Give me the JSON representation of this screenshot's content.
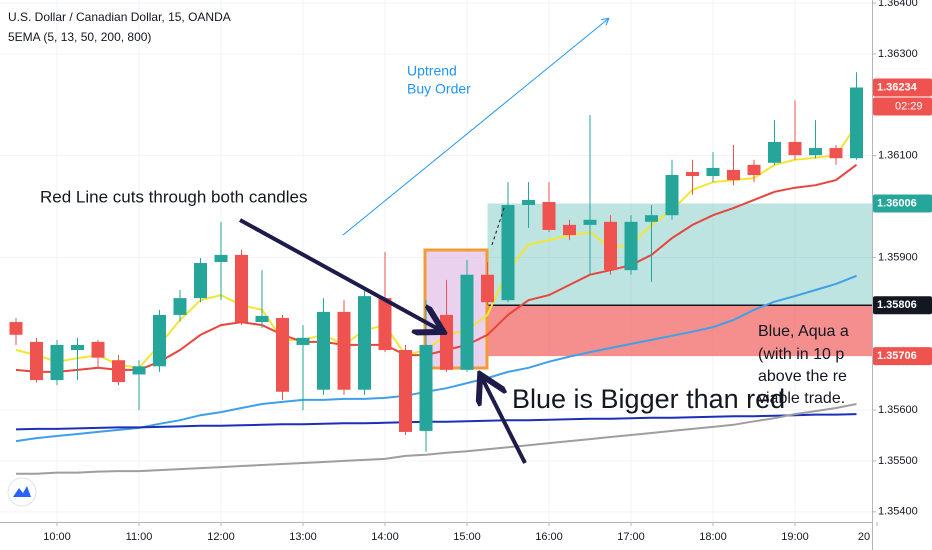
{
  "chart_data": {
    "type": "candlestick",
    "title": "U.S. Dollar / Canadian Dollar, 15, OANDA",
    "subtitle": "5EMA (5, 13, 50, 200, 800)",
    "x": [
      "09:30",
      "09:45",
      "10:00",
      "10:15",
      "10:30",
      "10:45",
      "11:00",
      "11:15",
      "11:30",
      "11:45",
      "12:00",
      "12:15",
      "12:30",
      "12:45",
      "13:00",
      "13:15",
      "13:30",
      "13:45",
      "14:00",
      "14:15",
      "14:30",
      "14:45",
      "15:00",
      "15:15",
      "15:30",
      "15:45",
      "16:00",
      "16:15",
      "16:30",
      "16:45",
      "17:00",
      "17:15",
      "17:30",
      "17:45",
      "18:00",
      "18:15",
      "18:30",
      "18:45",
      "19:00",
      "19:15",
      "19:30",
      "19:45"
    ],
    "open": [
      1.35773,
      1.35734,
      1.35659,
      1.35718,
      1.35734,
      1.35698,
      1.3567,
      1.35686,
      1.35787,
      1.3582,
      1.35891,
      1.35905,
      1.35773,
      1.35781,
      1.35728,
      1.3564,
      1.35793,
      1.3564,
      1.3582,
      1.35718,
      1.35559,
      1.35787,
      1.35679,
      1.35866,
      1.35816,
      1.36003,
      1.36009,
      1.35964,
      1.35964,
      1.3597,
      1.35875,
      1.3597,
      1.35983,
      1.36068,
      1.3606,
      1.36072,
      1.36082,
      1.36086,
      1.36127,
      1.36101,
      1.36115,
      1.36095
    ],
    "high": [
      1.35781,
      1.35742,
      1.35738,
      1.35742,
      1.35738,
      1.35708,
      1.35698,
      1.35797,
      1.35836,
      1.35899,
      1.3597,
      1.35915,
      1.35875,
      1.35787,
      1.35767,
      1.3582,
      1.35816,
      1.35836,
      1.35911,
      1.35728,
      1.35816,
      1.35856,
      1.35895,
      1.35891,
      1.36048,
      1.36048,
      1.36048,
      1.35974,
      1.3618,
      1.35983,
      1.35983,
      1.36003,
      1.36092,
      1.36092,
      1.36107,
      1.36121,
      1.36092,
      1.3617,
      1.36209,
      1.3617,
      1.36121,
      1.36264
    ],
    "low": [
      1.35728,
      1.35654,
      1.35649,
      1.35659,
      1.35683,
      1.35649,
      1.356,
      1.35675,
      1.35774,
      1.35812,
      1.35816,
      1.35767,
      1.35761,
      1.3562,
      1.356,
      1.3563,
      1.3563,
      1.3563,
      1.35714,
      1.35551,
      1.35518,
      1.35675,
      1.35675,
      1.35807,
      1.35812,
      1.35958,
      1.3595,
      1.35934,
      1.35866,
      1.35866,
      1.35866,
      1.35852,
      1.35974,
      1.36023,
      1.36048,
      1.36042,
      1.36048,
      1.36082,
      1.36092,
      1.36095,
      1.36082,
      1.36092
    ],
    "close": [
      1.35748,
      1.35659,
      1.35728,
      1.35728,
      1.35703,
      1.35655,
      1.35686,
      1.35787,
      1.3582,
      1.35889,
      1.35905,
      1.35773,
      1.35785,
      1.35636,
      1.35742,
      1.35793,
      1.3564,
      1.35824,
      1.35718,
      1.35557,
      1.35728,
      1.35679,
      1.35866,
      1.35812,
      1.36003,
      1.36013,
      1.35954,
      1.35944,
      1.35974,
      1.35875,
      1.3597,
      1.35983,
      1.36062,
      1.3606,
      1.36076,
      1.36052,
      1.36062,
      1.36127,
      1.36101,
      1.36115,
      1.36095,
      1.36234
    ],
    "colors": {
      "up": "#26a69a",
      "down": "#ef5350"
    },
    "series": [
      {
        "color": "#f5e533",
        "values": [
          1.35718,
          1.35708,
          1.35695,
          1.35702,
          1.35708,
          1.35689,
          1.35683,
          1.35728,
          1.35777,
          1.35816,
          1.35826,
          1.35806,
          1.35797,
          1.35738,
          1.35738,
          1.35748,
          1.35728,
          1.35757,
          1.35767,
          1.35708,
          1.35718,
          1.35748,
          1.35757,
          1.35787,
          1.35875,
          1.35925,
          1.35934,
          1.35944,
          1.3595,
          1.35919,
          1.35925,
          1.35964,
          1.35993,
          1.36033,
          1.36048,
          1.36052,
          1.36056,
          1.36082,
          1.36092,
          1.36096,
          1.36101,
          1.3616
        ]
      },
      {
        "color": "#e8453c",
        "values": [
          1.35679,
          1.35675,
          1.35675,
          1.35679,
          1.35683,
          1.35679,
          1.35679,
          1.35695,
          1.35718,
          1.35748,
          1.35767,
          1.35773,
          1.35767,
          1.35748,
          1.35734,
          1.35734,
          1.35728,
          1.35728,
          1.35728,
          1.35708,
          1.35708,
          1.35718,
          1.35728,
          1.35748,
          1.35787,
          1.35816,
          1.35826,
          1.35846,
          1.35866,
          1.35875,
          1.35885,
          1.35905,
          1.35938,
          1.35964,
          1.35983,
          1.35997,
          1.36013,
          1.36029,
          1.36037,
          1.36042,
          1.36052,
          1.36082
        ]
      },
      {
        "color": "#3fa0e8",
        "values": [
          1.35539,
          1.35545,
          1.35549,
          1.35553,
          1.35557,
          1.35561,
          1.35565,
          1.35573,
          1.3558,
          1.3559,
          1.35596,
          1.35604,
          1.35612,
          1.35616,
          1.3562,
          1.3562,
          1.35622,
          1.35622,
          1.35624,
          1.35628,
          1.35636,
          1.35643,
          1.35653,
          1.35663,
          1.35675,
          1.35683,
          1.35695,
          1.35705,
          1.35714,
          1.35722,
          1.3573,
          1.35738,
          1.35746,
          1.35754,
          1.35763,
          1.35777,
          1.35797,
          1.35813,
          1.35824,
          1.35836,
          1.35848,
          1.35864
        ]
      },
      {
        "color": "#1b2fb8",
        "values": [
          1.35562,
          1.35563,
          1.35563,
          1.35564,
          1.35565,
          1.35566,
          1.35566,
          1.35567,
          1.35568,
          1.35569,
          1.35569,
          1.3557,
          1.35571,
          1.35572,
          1.35572,
          1.35573,
          1.35574,
          1.35574,
          1.35575,
          1.35576,
          1.35577,
          1.35577,
          1.35578,
          1.35579,
          1.3558,
          1.3558,
          1.35581,
          1.35582,
          1.35583,
          1.35583,
          1.35584,
          1.35585,
          1.35585,
          1.35586,
          1.35587,
          1.35588,
          1.35588,
          1.35589,
          1.3559,
          1.35591,
          1.35591,
          1.35592
        ]
      },
      {
        "color": "#9e9e9e",
        "values": [
          1.35475,
          1.35475,
          1.35477,
          1.35477,
          1.35479,
          1.3548,
          1.3548,
          1.35482,
          1.35484,
          1.35486,
          1.35488,
          1.3549,
          1.35492,
          1.35494,
          1.35496,
          1.35498,
          1.355,
          1.35502,
          1.35504,
          1.3551,
          1.35512,
          1.35516,
          1.35519,
          1.35523,
          1.35527,
          1.35531,
          1.35535,
          1.35539,
          1.35543,
          1.35547,
          1.35551,
          1.35555,
          1.35559,
          1.35563,
          1.35567,
          1.35571,
          1.35578,
          1.35584,
          1.35592,
          1.35598,
          1.35604,
          1.35612
        ]
      }
    ],
    "ylim": [
      1.3538,
      1.36406
    ],
    "yticks": [
      {
        "value": 1.364,
        "label": "1.36400"
      },
      {
        "value": 1.363,
        "label": "1.36300"
      },
      {
        "value": 1.361,
        "label": "1.36100"
      },
      {
        "value": 1.359,
        "label": "1.35900"
      },
      {
        "value": 1.356,
        "label": "1.35600"
      },
      {
        "value": 1.355,
        "label": "1.35500"
      },
      {
        "value": 1.354,
        "label": "1.35400"
      }
    ],
    "xticks": [
      "10:00",
      "11:00",
      "12:00",
      "13:00",
      "14:00",
      "15:00",
      "16:00",
      "17:00",
      "18:00",
      "19:00",
      {
        "value": "20:00",
        "label": "20"
      }
    ],
    "grid": true,
    "position": {
      "start": "15:15",
      "target": 1.36006,
      "entry": 1.35806,
      "stop": 1.35706,
      "target_color": "#26a69a",
      "stop_color": "#ef5350"
    },
    "countdown": "02:29",
    "annotations": [
      "Uptrend",
      "Buy Order",
      "Red Line cuts through both candles",
      "Blue is Bigger than red",
      "Blue, Aqua a",
      "(with in 10 p",
      "above the re",
      "viable trade."
    ]
  }
}
